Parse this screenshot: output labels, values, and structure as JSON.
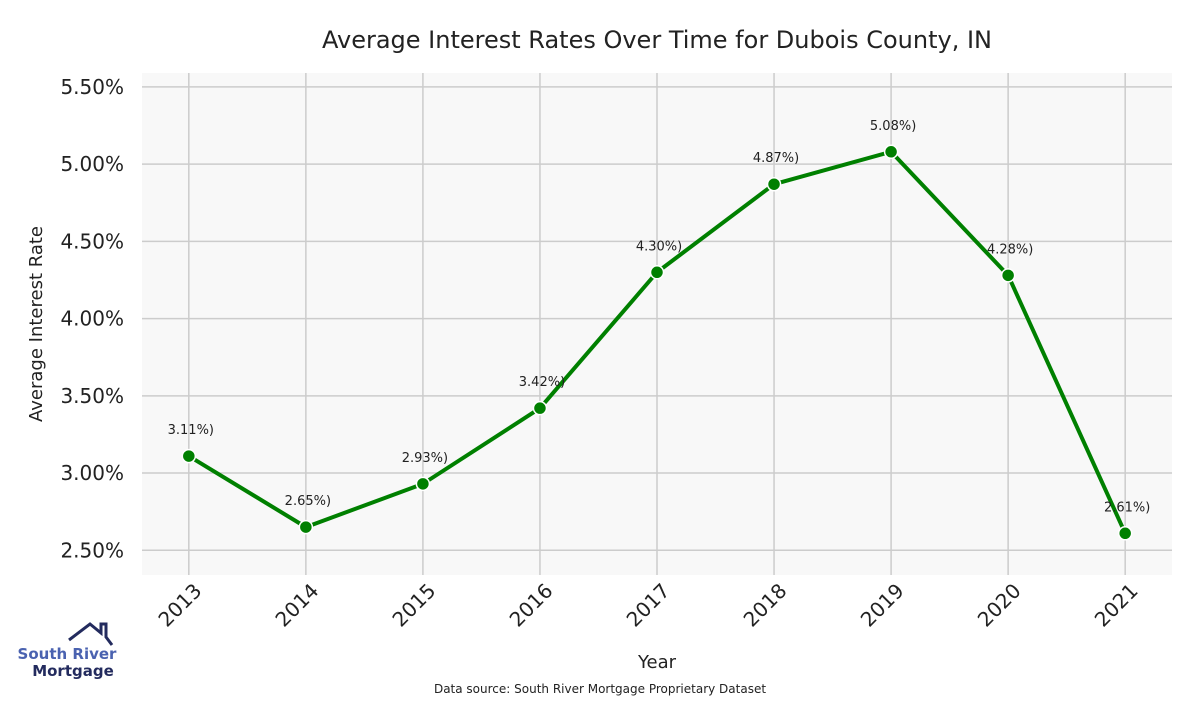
{
  "chart_data": {
    "type": "line",
    "title": "Average Interest Rates Over Time for Dubois County, IN",
    "xlabel": "Year",
    "ylabel": "Average Interest Rate",
    "categories": [
      "2013",
      "2014",
      "2015",
      "2016",
      "2017",
      "2018",
      "2019",
      "2020",
      "2021"
    ],
    "series": [
      {
        "name": "Average Interest Rate",
        "values": [
          3.11,
          2.65,
          2.93,
          3.42,
          4.3,
          4.87,
          5.08,
          4.28,
          2.61
        ],
        "color": "#008000"
      }
    ],
    "data_labels": [
      "3.11%)",
      "2.65%)",
      "2.93%)",
      "3.42%)",
      "4.30%)",
      "4.87%)",
      "5.08%)",
      "4.28%)",
      "2.61%)"
    ],
    "yticks": [
      2.5,
      3.0,
      3.5,
      4.0,
      4.5,
      5.0,
      5.5
    ],
    "ytick_labels": [
      "2.50%",
      "3.00%",
      "3.50%",
      "4.00%",
      "4.50%",
      "5.00%",
      "5.50%"
    ],
    "ylim": [
      2.34,
      5.59
    ],
    "grid": true,
    "background": "#f8f8f8",
    "grid_color": "#cccccc"
  },
  "footer": {
    "source": "Data source: South River Mortgage Proprietary Dataset"
  },
  "logo": {
    "line1": "South River",
    "line2": "Mortgage",
    "color1": "#4a62b0",
    "color2": "#232b5e"
  }
}
